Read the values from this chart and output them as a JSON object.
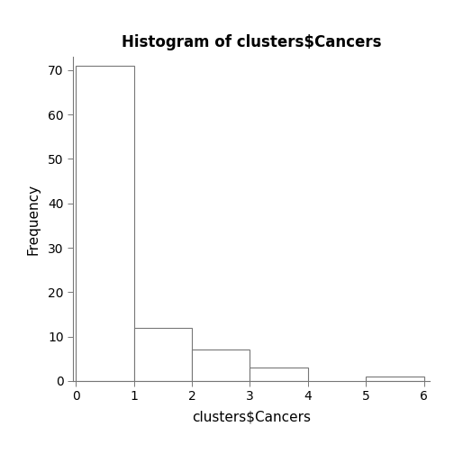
{
  "title": "Histogram of clusters$Cancers",
  "xlabel": "clusters$Cancers",
  "ylabel": "Frequency",
  "bar_edges": [
    0,
    1,
    2,
    3,
    4,
    5,
    6
  ],
  "bar_heights": [
    71,
    12,
    7,
    3,
    0,
    1
  ],
  "bar_color": "#ffffff",
  "bar_edge_color": "#777777",
  "background_color": "#ffffff",
  "xlim": [
    -0.05,
    6.1
  ],
  "ylim": [
    0,
    73
  ],
  "yticks": [
    0,
    10,
    20,
    30,
    40,
    50,
    60,
    70
  ],
  "xticks": [
    0,
    1,
    2,
    3,
    4,
    5,
    6
  ],
  "title_fontsize": 12,
  "axis_fontsize": 11,
  "tick_fontsize": 10
}
